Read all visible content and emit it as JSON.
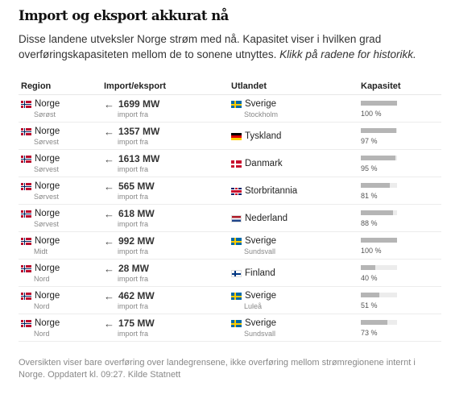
{
  "title": "Import og eksport akkurat nå",
  "intro_text": "Disse landene utveksler Norge strøm med nå. Kapasitet viser i hvilken grad overføringskapasiteten mellom de to sonene utnyttes. ",
  "intro_link": "Klikk på radene for historikk.",
  "headers": {
    "region": "Region",
    "flow": "Import/eksport",
    "country": "Utlandet",
    "capacity": "Kapasitet"
  },
  "rows": [
    {
      "country_no": "Norge",
      "zone": "Sørøst",
      "flow": "1699 MW",
      "direction": "import fra",
      "country": "Sverige",
      "country_zone": "Stockholm",
      "flag": "se",
      "capacity_pct": 100,
      "capacity_label": "100 %"
    },
    {
      "country_no": "Norge",
      "zone": "Sørvest",
      "flow": "1357 MW",
      "direction": "import fra",
      "country": "Tyskland",
      "country_zone": "",
      "flag": "de",
      "capacity_pct": 97,
      "capacity_label": "97 %"
    },
    {
      "country_no": "Norge",
      "zone": "Sørvest",
      "flow": "1613 MW",
      "direction": "import fra",
      "country": "Danmark",
      "country_zone": "",
      "flag": "dk",
      "capacity_pct": 95,
      "capacity_label": "95 %"
    },
    {
      "country_no": "Norge",
      "zone": "Sørvest",
      "flow": "565 MW",
      "direction": "import fra",
      "country": "Storbritannia",
      "country_zone": "",
      "flag": "gb",
      "capacity_pct": 81,
      "capacity_label": "81 %"
    },
    {
      "country_no": "Norge",
      "zone": "Sørvest",
      "flow": "618 MW",
      "direction": "import fra",
      "country": "Nederland",
      "country_zone": "",
      "flag": "nl",
      "capacity_pct": 88,
      "capacity_label": "88 %"
    },
    {
      "country_no": "Norge",
      "zone": "Midt",
      "flow": "992 MW",
      "direction": "import fra",
      "country": "Sverige",
      "country_zone": "Sundsvall",
      "flag": "se",
      "capacity_pct": 100,
      "capacity_label": "100 %"
    },
    {
      "country_no": "Norge",
      "zone": "Nord",
      "flow": "28 MW",
      "direction": "import fra",
      "country": "Finland",
      "country_zone": "",
      "flag": "fi",
      "capacity_pct": 40,
      "capacity_label": "40 %"
    },
    {
      "country_no": "Norge",
      "zone": "Nord",
      "flow": "462 MW",
      "direction": "import fra",
      "country": "Sverige",
      "country_zone": "Luleå",
      "flag": "se",
      "capacity_pct": 51,
      "capacity_label": "51 %"
    },
    {
      "country_no": "Norge",
      "zone": "Nord",
      "flow": "175 MW",
      "direction": "import fra",
      "country": "Sverige",
      "country_zone": "Sundsvall",
      "flag": "se",
      "capacity_pct": 73,
      "capacity_label": "73 %"
    }
  ],
  "footer": "Oversikten viser bare overføring over landegrensene, ikke overføring mellom strømregionene internt i Norge. Oppdatert kl. 09:27. Kilde Statnett",
  "icons": {
    "arrow": "arrow-left-icon"
  },
  "colors": {
    "bar_fill": "#b5b5b5",
    "bar_track": "#ececec"
  }
}
